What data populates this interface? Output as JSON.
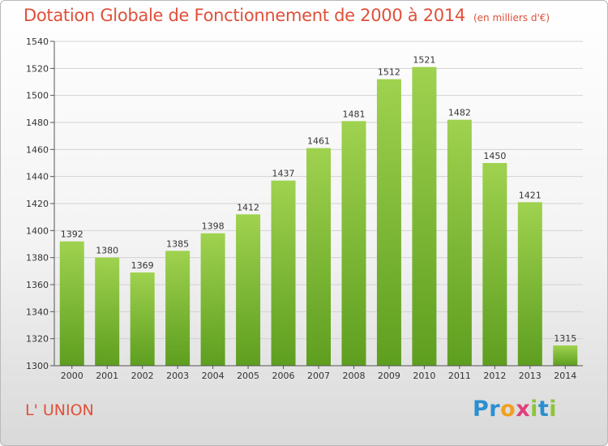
{
  "title": "Dotation Globale de Fonctionnement de 2000 à 2014",
  "unit_note": "(en milliers d'€)",
  "commune": "L' UNION",
  "logo": {
    "letters": [
      "P",
      "r",
      "o",
      "x",
      "i",
      "t",
      "i"
    ],
    "colors": [
      "#2a8fd0",
      "#2a8fd0",
      "#f0a020",
      "#e23f7a",
      "#8cc43a",
      "#2a8fd0",
      "#8cc43a"
    ]
  },
  "colors": {
    "bar_top": "#9fd24f",
    "bar_bottom": "#5e9e1f",
    "title": "#e0503a"
  },
  "chart_data": {
    "type": "bar",
    "categories": [
      "2000",
      "2001",
      "2002",
      "2003",
      "2004",
      "2005",
      "2006",
      "2007",
      "2008",
      "2009",
      "2010",
      "2011",
      "2012",
      "2013",
      "2014"
    ],
    "values": [
      1392,
      1380,
      1369,
      1385,
      1398,
      1412,
      1437,
      1461,
      1481,
      1512,
      1521,
      1482,
      1450,
      1421,
      1315
    ],
    "title": "Dotation Globale de Fonctionnement de 2000 à 2014",
    "ylim": [
      1300,
      1540
    ],
    "yticks": [
      1300,
      1320,
      1340,
      1360,
      1380,
      1400,
      1420,
      1440,
      1460,
      1480,
      1500,
      1520,
      1540
    ],
    "grid": true,
    "data_labels": true
  }
}
